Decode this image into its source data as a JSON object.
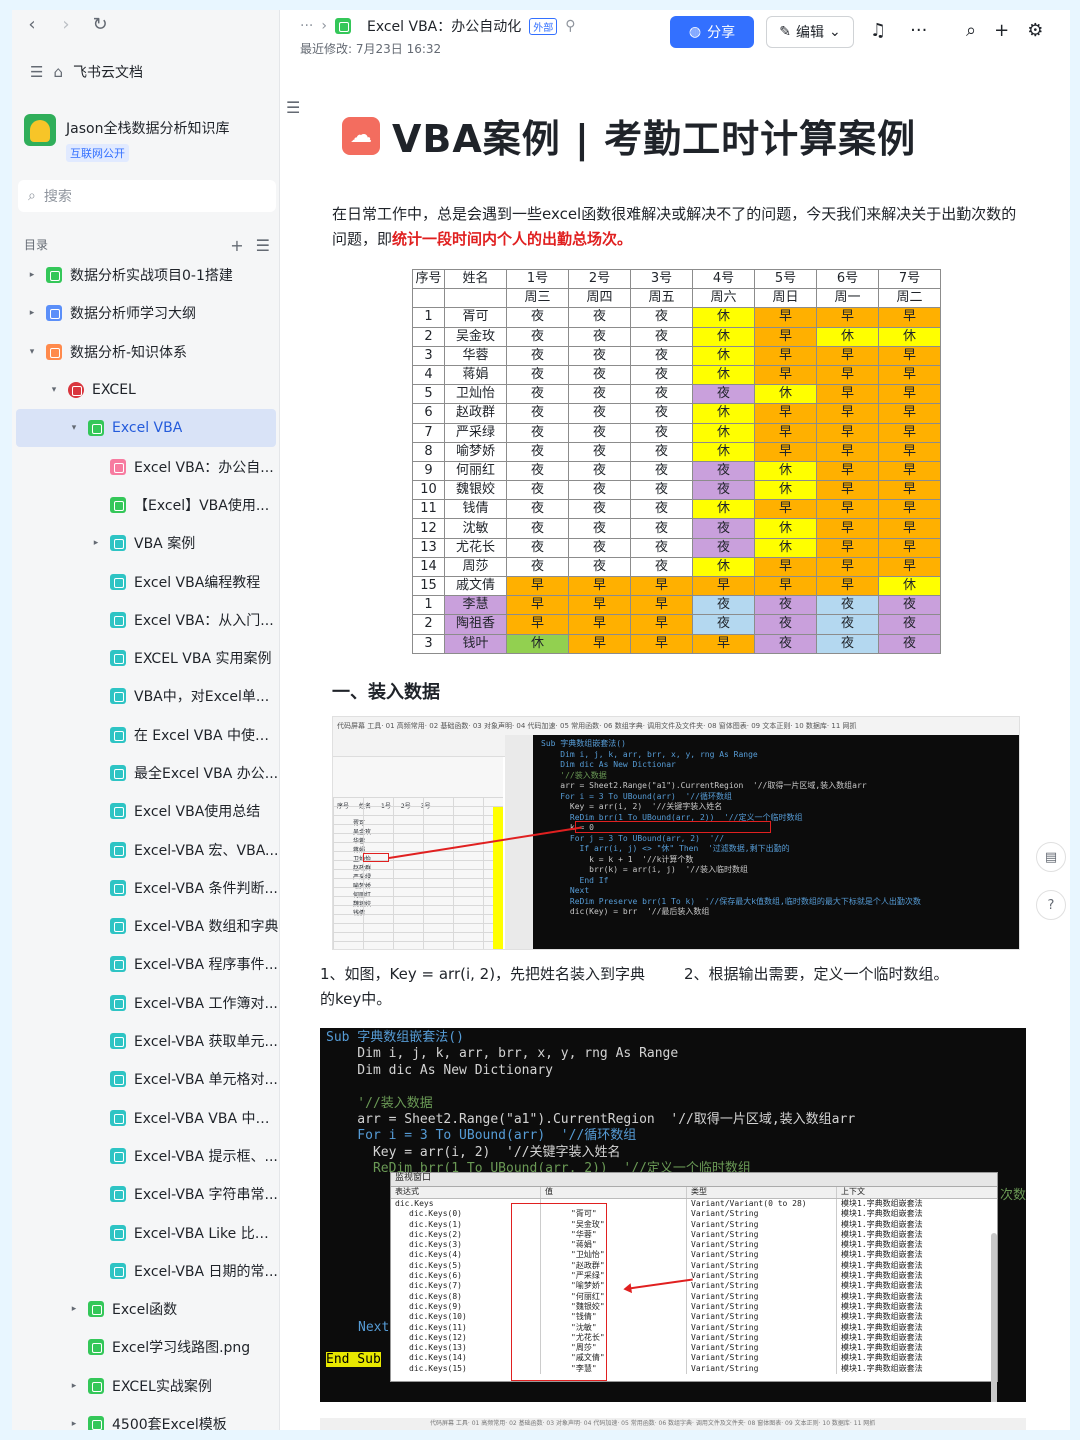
{
  "colors": {
    "accent": "#3370ff",
    "highlight_red": "#e02020",
    "rest_yellow": "#ffff00",
    "morning_orange": "#ffb000",
    "night_purple": "#c9a0dc",
    "green": "#92d050",
    "blue": "#b4d8f0"
  },
  "sidebar": {
    "brand": "飞书云文档",
    "kb_title": "Jason全栈数据分析知识库",
    "kb_badge": "互联网公开",
    "search_placeholder": "搜索",
    "toc_label": "目录",
    "items": [
      {
        "label": "数据分析实战项目0-1搭建",
        "indent": 0,
        "caret": "▸",
        "icon": "green"
      },
      {
        "label": "数据分析师学习大纲",
        "indent": 0,
        "caret": "▸",
        "icon": "blue"
      },
      {
        "label": "数据分析-知识体系",
        "indent": 0,
        "caret": "▾",
        "icon": "orange"
      },
      {
        "label": "EXCEL",
        "indent": 1,
        "caret": "▾",
        "icon": "red"
      },
      {
        "label": "Excel VBA",
        "indent": 2,
        "caret": "▾",
        "icon": "green",
        "active": true
      },
      {
        "label": "Excel VBA：办公自...",
        "indent": 3,
        "caret": "",
        "icon": "pink"
      },
      {
        "label": "【Excel】VBA使用...",
        "indent": 3,
        "caret": "",
        "icon": "green"
      },
      {
        "label": "VBA 案例",
        "indent": 3,
        "caret": "▸",
        "icon": "cyan"
      },
      {
        "label": "Excel VBA编程教程",
        "indent": 3,
        "caret": "",
        "icon": "cyan"
      },
      {
        "label": "Excel VBA：从入门...",
        "indent": 3,
        "caret": "",
        "icon": "cyan"
      },
      {
        "label": "EXCEL VBA 实用案例",
        "indent": 3,
        "caret": "",
        "icon": "cyan"
      },
      {
        "label": "VBA中，对Excel单...",
        "indent": 3,
        "caret": "",
        "icon": "cyan"
      },
      {
        "label": "在 Excel VBA 中使用...",
        "indent": 3,
        "caret": "",
        "icon": "cyan"
      },
      {
        "label": "最全Excel VBA 办公...",
        "indent": 3,
        "caret": "",
        "icon": "cyan"
      },
      {
        "label": "Excel VBA使用总结",
        "indent": 3,
        "caret": "",
        "icon": "cyan"
      },
      {
        "label": "Excel-VBA 宏、VBA...",
        "indent": 3,
        "caret": "",
        "icon": "cyan"
      },
      {
        "label": "Excel-VBA 条件判断...",
        "indent": 3,
        "caret": "",
        "icon": "cyan"
      },
      {
        "label": "Excel-VBA 数组和字典",
        "indent": 3,
        "caret": "",
        "icon": "cyan"
      },
      {
        "label": "Excel-VBA 程序事件...",
        "indent": 3,
        "caret": "",
        "icon": "cyan"
      },
      {
        "label": "Excel-VBA 工作簿对...",
        "indent": 3,
        "caret": "",
        "icon": "cyan"
      },
      {
        "label": "Excel-VBA 获取单元...",
        "indent": 3,
        "caret": "",
        "icon": "cyan"
      },
      {
        "label": "Excel-VBA 单元格对...",
        "indent": 3,
        "caret": "",
        "icon": "cyan"
      },
      {
        "label": "Excel-VBA VBA 中的...",
        "indent": 3,
        "caret": "",
        "icon": "cyan"
      },
      {
        "label": "Excel-VBA 提示框、...",
        "indent": 3,
        "caret": "",
        "icon": "cyan"
      },
      {
        "label": "Excel-VBA 字符串常...",
        "indent": 3,
        "caret": "",
        "icon": "cyan"
      },
      {
        "label": "Excel-VBA Like 比较...",
        "indent": 3,
        "caret": "",
        "icon": "cyan"
      },
      {
        "label": "Excel-VBA 日期的常...",
        "indent": 3,
        "caret": "",
        "icon": "cyan"
      },
      {
        "label": "Excel函数",
        "indent": 2,
        "caret": "▸",
        "icon": "green"
      },
      {
        "label": "Excel学习线路图.png",
        "indent": 2,
        "caret": "",
        "icon": "green"
      },
      {
        "label": "EXCEL实战案例",
        "indent": 2,
        "caret": "▸",
        "icon": "green"
      },
      {
        "label": "4500套Excel模板",
        "indent": 2,
        "caret": "▸",
        "icon": "green"
      }
    ]
  },
  "topbar": {
    "crumb_dots": "···",
    "doc_name": "Excel VBA：办公自动化",
    "ext_badge": "外部",
    "modified": "最近修改: 7月23日 16:32",
    "share": "分享",
    "edit": "编辑"
  },
  "doc": {
    "title": "VBA案例 | 考勤工时计算案例",
    "intro_plain": "在日常工作中，总是会遇到一些excel函数很难解决或解决不了的问题，今天我们来解决关于出勤次数的问题，即",
    "intro_red": "统计一段时间内个人的出勤总场次。",
    "section1": "一、装入数据",
    "caption_left": "1、如图，Key = arr(i, 2)，先把姓名装入到字典的key中。",
    "caption_right": "2、根据输出需要，定义一个临时数组。",
    "table": {
      "header1": [
        "序号",
        "姓名",
        "1号",
        "2号",
        "3号",
        "4号",
        "5号",
        "6号",
        "7号"
      ],
      "header2": [
        "",
        "",
        "周三",
        "周四",
        "周五",
        "周六",
        "周日",
        "周一",
        "周二"
      ],
      "rows": [
        [
          "1",
          "胥可",
          "夜",
          "夜",
          "夜",
          "休",
          "早",
          "早",
          "早"
        ],
        [
          "2",
          "吴金玫",
          "夜",
          "夜",
          "夜",
          "休",
          "早",
          "休",
          "休"
        ],
        [
          "3",
          "华蓉",
          "夜",
          "夜",
          "夜",
          "休",
          "早",
          "早",
          "早"
        ],
        [
          "4",
          "蒋娟",
          "夜",
          "夜",
          "夜",
          "休",
          "早",
          "早",
          "早"
        ],
        [
          "5",
          "卫灿怡",
          "夜",
          "夜",
          "夜",
          "夜",
          "休",
          "早",
          "早"
        ],
        [
          "6",
          "赵政群",
          "夜",
          "夜",
          "夜",
          "休",
          "早",
          "早",
          "早"
        ],
        [
          "7",
          "严采绿",
          "夜",
          "夜",
          "夜",
          "休",
          "早",
          "早",
          "早"
        ],
        [
          "8",
          "喻梦娇",
          "夜",
          "夜",
          "夜",
          "休",
          "早",
          "早",
          "早"
        ],
        [
          "9",
          "何丽红",
          "夜",
          "夜",
          "夜",
          "夜",
          "休",
          "早",
          "早"
        ],
        [
          "10",
          "魏银姣",
          "夜",
          "夜",
          "夜",
          "夜",
          "休",
          "早",
          "早"
        ],
        [
          "11",
          "钱倩",
          "夜",
          "夜",
          "夜",
          "休",
          "早",
          "早",
          "早"
        ],
        [
          "12",
          "沈敏",
          "夜",
          "夜",
          "夜",
          "夜",
          "休",
          "早",
          "早"
        ],
        [
          "13",
          "尤花长",
          "夜",
          "夜",
          "夜",
          "夜",
          "休",
          "早",
          "早"
        ],
        [
          "14",
          "周莎",
          "夜",
          "夜",
          "夜",
          "休",
          "早",
          "早",
          "早"
        ],
        [
          "15",
          "戚文倩",
          "早",
          "早",
          "早",
          "早",
          "早",
          "早",
          "休"
        ],
        [
          "1",
          "李慧",
          "早",
          "早",
          "早",
          "夜",
          "夜",
          "夜",
          "夜"
        ],
        [
          "2",
          "陶祖香",
          "早",
          "早",
          "早",
          "夜",
          "夜",
          "夜",
          "夜"
        ],
        [
          "3",
          "钱叶",
          "休",
          "早",
          "早",
          "早",
          "夜",
          "夜",
          "夜"
        ]
      ]
    },
    "code1": [
      "Sub 字典数组嵌套法()",
      "    Dim i, j, k, arr, brr, x, y, rng As Range",
      "    Dim dic As New Dictionar",
      "",
      "    '//装入数据",
      "    arr = Sheet2.Range(\"a1\").CurrentRegion  '//取得一片区域,装入数组arr",
      "    For i = 3 To UBound(arr)  '//循环数组",
      "      Key = arr(i, 2)  '//关键字装入姓名",
      "      ReDim brr(1 To UBound(arr, 2))  '//定义一个临时数组",
      "      k = 0",
      "      For j = 3 To UBound(arr, 2)  '//",
      "        If arr(i, j) <> \"休\" Then  '过滤数据,剩下出勤的",
      "          k = k + 1  '//k计算个数",
      "          brr(k) = arr(i, j)  '//装入临时数组",
      "        End If",
      "      Next",
      "      ReDim Preserve brr(1 To k)  '//保存最大k值数组,临时数组的最大下标就是个人出勤次数",
      "      dic(Key) = brr  '//最后装入数组"
    ],
    "code2": {
      "line1": "Sub 字典数组嵌套法()",
      "line2": "    Dim i, j, k, arr, brr, x, y, rng As Range",
      "line3": "    Dim dic As New Dictionary",
      "line4": "    '//装入数据",
      "line5": "    arr = Sheet2.Range(\"a1\").CurrentRegion  '//取得一片区域,装入数组arr",
      "line6": "    For i = 3 To UBound(arr)  '//循环数组",
      "line7": "      Key = arr(i, 2)  '//关键字装入姓名",
      "line8": "      ReDim brr(1 To UBound(arr, 2))  '//定义一个临时数组",
      "next": "Next",
      "endsub": "End Sub",
      "trail": "次数"
    },
    "watch": {
      "title": "监视窗口",
      "headers": [
        "表达式",
        "值",
        "类型",
        "上下文"
      ],
      "root": "dic.Keys",
      "root_type": "Variant/Variant(0 to 28)",
      "context": "模块1.字典数组嵌套法",
      "keys": [
        "dic.Keys(0)",
        "dic.Keys(1)",
        "dic.Keys(2)",
        "dic.Keys(3)",
        "dic.Keys(4)",
        "dic.Keys(5)",
        "dic.Keys(6)",
        "dic.Keys(7)",
        "dic.Keys(8)",
        "dic.Keys(9)",
        "dic.Keys(10)",
        "dic.Keys(11)",
        "dic.Keys(12)",
        "dic.Keys(13)",
        "dic.Keys(14)",
        "dic.Keys(15)"
      ],
      "values": [
        "\"胥可\"",
        "\"吴金玫\"",
        "\"华蓉\"",
        "\"蒋娟\"",
        "\"卫灿怡\"",
        "\"赵政群\"",
        "\"严采绿\"",
        "\"喻梦娇\"",
        "\"何丽红\"",
        "\"魏银姣\"",
        "\"钱倩\"",
        "\"沈敏\"",
        "\"尤花长\"",
        "\"周莎\"",
        "\"戚文倩\"",
        "\"李慧\""
      ],
      "type": "Variant/String"
    },
    "ribbon_text": "代码屏幕 工具· 01 高频常用· 02 基础函数· 03 对象声明· 04 代码加速· 05 常用函数· 06 数组字典· 调用文件及文件夹· 08 窗体图表· 09 文本正则· 10 数据库· 11 网抓",
    "sheet_headers": [
      "序号",
      "姓名",
      "1号",
      "2号",
      "3号"
    ],
    "sheet_names": [
      "胥可",
      "吴金玫",
      "华蓉",
      "蒋娟",
      "卫灿怡",
      "赵政群",
      "严采绿",
      "喻梦娇",
      "何丽红",
      "魏银姣",
      "钱倩"
    ]
  }
}
